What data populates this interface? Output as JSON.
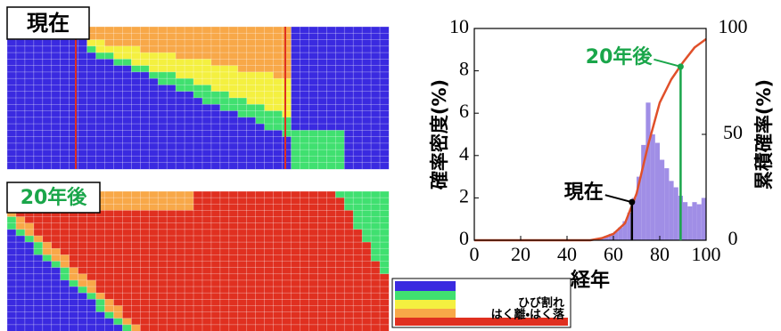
{
  "panels": [
    {
      "label": "現在"
    },
    {
      "label": "20年後"
    }
  ],
  "legend": {
    "labels": [
      "ひび割れ",
      "はく離・はく落"
    ]
  },
  "chart_data": {
    "type": "histogram",
    "xlabel": "経年",
    "ylabel": "確率密度(%)",
    "y2label": "累積確率(%)",
    "bins": [
      54,
      56,
      58,
      60,
      62,
      64,
      66,
      68,
      70,
      72,
      74,
      76,
      78,
      80,
      82,
      84,
      86,
      88,
      90,
      92,
      94,
      96,
      98,
      100
    ],
    "counts": [
      0.1,
      0.2,
      0.3,
      0.4,
      0.6,
      0.9,
      1.3,
      2.0,
      3.0,
      4.5,
      6.5,
      5.0,
      4.6,
      3.8,
      3.4,
      2.8,
      2.5,
      2.1,
      1.8,
      1.6,
      1.8,
      1.7,
      2.0
    ],
    "color": "#a08ee6",
    "line": {
      "x": [
        0,
        50,
        55,
        60,
        65,
        70,
        75,
        80,
        85,
        90,
        95,
        100
      ],
      "values": [
        0,
        0,
        1,
        3,
        8,
        22,
        45,
        65,
        76,
        84,
        91,
        95
      ],
      "color": "#e0502a",
      "axis": "y2"
    },
    "annotations": [
      {
        "text": "現在",
        "x": 68,
        "y": 18,
        "color": "#000000"
      },
      {
        "text": "20年後",
        "x": 89,
        "y": 82,
        "color": "#1aa64a"
      }
    ],
    "xlim": [
      0,
      100
    ],
    "xticks": [
      0,
      20,
      40,
      60,
      80,
      100
    ],
    "ylim": [
      0,
      10
    ],
    "yticks": [
      0,
      2,
      4,
      6,
      8,
      10
    ],
    "y2lim": [
      0,
      100
    ],
    "y2ticks": [
      0,
      50,
      100
    ]
  }
}
